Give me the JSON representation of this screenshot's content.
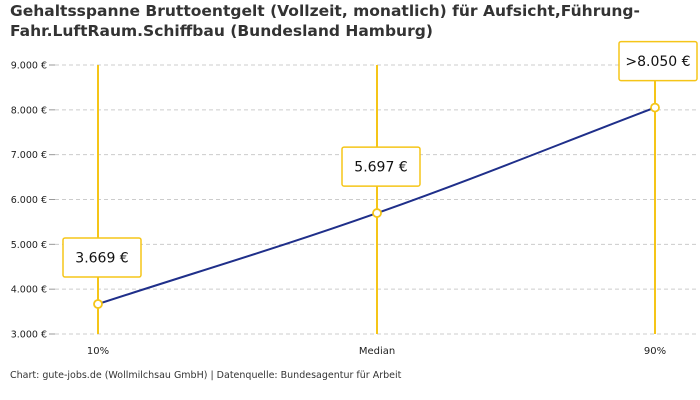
{
  "title": "Gehaltsspanne Bruttoentgelt (Vollzeit, monatlich) für Aufsicht,Führung-Fahr.LuftRaum.Schiffbau (Bundesland Hamburg)",
  "footer": "Chart: gute-jobs.de (Wollmilchsau GmbH) | Datenquelle: Bundesagentur für Arbeit",
  "colors": {
    "line": "#1f2f8a",
    "accent": "#f5c518",
    "grid": "#cccccc"
  },
  "chart_data": {
    "type": "line",
    "title": "Gehaltsspanne Bruttoentgelt (Vollzeit, monatlich) für Aufsicht,Führung-Fahr.LuftRaum.Schiffbau (Bundesland Hamburg)",
    "categories": [
      "10%",
      "Median",
      "90%"
    ],
    "values": [
      3669,
      5697,
      8050
    ],
    "point_labels": [
      "3.669 €",
      "5.697 €",
      ">8.050 €"
    ],
    "y_ticks": [
      3000,
      4000,
      5000,
      6000,
      7000,
      8000,
      9000
    ],
    "y_tick_labels": [
      "3.000 €",
      "4.000 €",
      "5.000 €",
      "6.000 €",
      "7.000 €",
      "8.000 €",
      "9.000 €"
    ],
    "ylim": [
      3000,
      9000
    ],
    "xlabel": "",
    "ylabel": "",
    "grid": true
  }
}
